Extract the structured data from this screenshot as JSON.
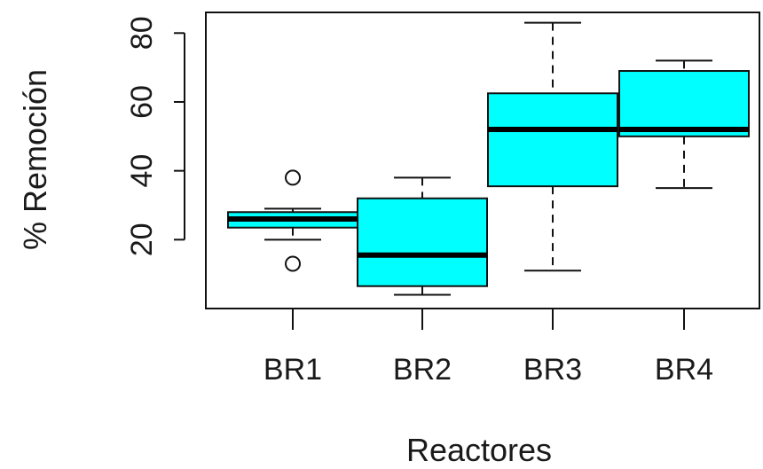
{
  "chart_data": {
    "type": "box",
    "categories": [
      "BR1",
      "BR2",
      "BR3",
      "BR4"
    ],
    "boxes": [
      {
        "category": "BR1",
        "whisker_low": 20,
        "q1": 23.5,
        "median": 26,
        "q3": 28,
        "whisker_high": 29,
        "outliers": [
          38,
          13
        ]
      },
      {
        "category": "BR2",
        "whisker_low": 4,
        "q1": 6.5,
        "median": 15.5,
        "q3": 32,
        "whisker_high": 38,
        "outliers": []
      },
      {
        "category": "BR3",
        "whisker_low": 11,
        "q1": 35.5,
        "median": 52,
        "q3": 62.5,
        "whisker_high": 83,
        "outliers": []
      },
      {
        "category": "BR4",
        "whisker_low": 35,
        "q1": 50,
        "median": 52,
        "q3": 69,
        "whisker_high": 72,
        "outliers": []
      }
    ],
    "xlabel": "Reactores",
    "ylabel": "% Remoción",
    "yticks": [
      20,
      40,
      60,
      80
    ],
    "ylim": [
      0,
      86
    ],
    "box_color": "#00ffff",
    "grid": false
  }
}
